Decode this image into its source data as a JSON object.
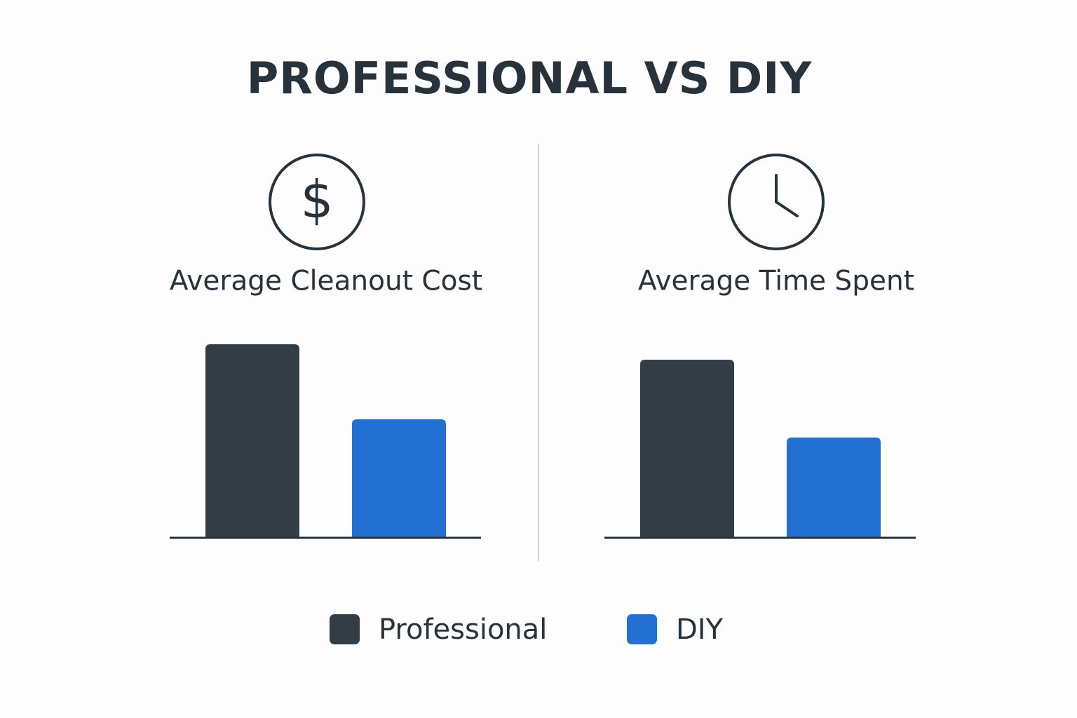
{
  "title": "PROFESSIONAL VS DIY",
  "chart_data": [
    {
      "type": "bar",
      "title": "Average Cleanout Cost",
      "ylim": [
        0,
        300
      ],
      "series": [
        {
          "name": "Professional",
          "color": "#323d46",
          "values": [
            276
          ]
        },
        {
          "name": "DIY",
          "color": "#2370d3",
          "values": [
            169
          ]
        }
      ]
    },
    {
      "type": "bar",
      "title": "Average Time Spent",
      "ylim": [
        0,
        300
      ],
      "series": [
        {
          "name": "Professional",
          "color": "#323d46",
          "values": [
            254
          ]
        },
        {
          "name": "DIY",
          "color": "#2370d3",
          "values": [
            143
          ]
        }
      ]
    }
  ]
}
